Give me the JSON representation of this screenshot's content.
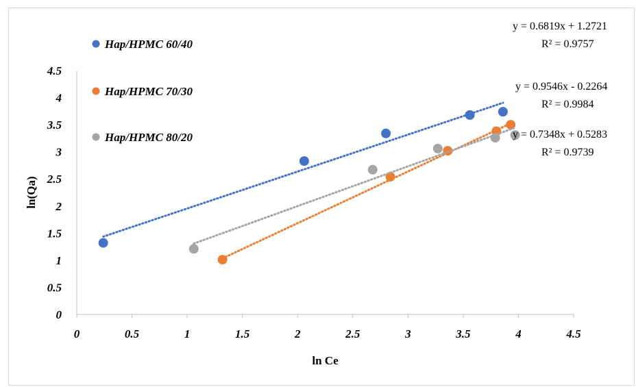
{
  "chart_data": {
    "type": "scatter",
    "title": "",
    "xlabel": "ln Ce",
    "ylabel": "ln(Qa)",
    "xlim": [
      0,
      4.5
    ],
    "ylim": [
      0,
      4.5
    ],
    "x_ticks": [
      "0",
      "0.5",
      "1",
      "1.5",
      "2",
      "2.5",
      "3",
      "3.5",
      "4",
      "4.5"
    ],
    "y_ticks": [
      "0",
      "0.5",
      "1",
      "1.5",
      "2",
      "2.5",
      "3",
      "3.5",
      "4",
      "4.5"
    ],
    "grid": false,
    "legend_position": "left",
    "series": [
      {
        "name": "Hap/HPMC 60/40",
        "color": "#4472c4",
        "x": [
          0.24,
          2.06,
          2.8,
          3.56,
          3.86
        ],
        "y": [
          1.32,
          2.83,
          3.34,
          3.68,
          3.74
        ],
        "trendline": {
          "x": [
            0.24,
            3.86
          ],
          "equation": "y = 0.6819x + 1.2721",
          "r2": "R² = 0.9757"
        }
      },
      {
        "name": "Hap/HPMC 70/30",
        "color": "#ed7d31",
        "x": [
          1.32,
          2.84,
          3.36,
          3.8,
          3.93
        ],
        "y": [
          1.01,
          2.54,
          3.02,
          3.38,
          3.5
        ],
        "trendline": {
          "x": [
            1.32,
            3.93
          ],
          "equation": "y = 0.9546x - 0.2264",
          "r2": "R² = 0.9984"
        }
      },
      {
        "name": "Hap/HPMC 80/20",
        "color": "#a5a5a5",
        "x": [
          1.06,
          2.68,
          3.27,
          3.79,
          3.97
        ],
        "y": [
          1.21,
          2.67,
          3.06,
          3.26,
          3.31
        ],
        "trendline": {
          "x": [
            1.06,
            3.97
          ],
          "equation": "y = 0.7348x + 0.5283",
          "r2": "R² = 0.9739"
        }
      }
    ]
  }
}
